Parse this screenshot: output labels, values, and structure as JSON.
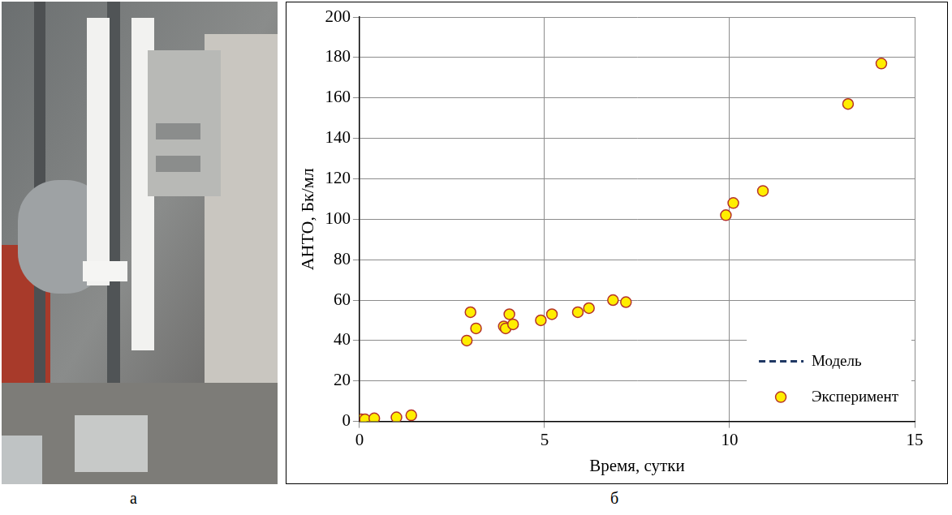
{
  "photo_panel": {
    "label": "а"
  },
  "chart_data": {
    "panel_label": "б",
    "type": "scatter",
    "x_label": "Время, сутки",
    "y_label": "АНТО, Бк/мл",
    "x": [
      0.05,
      0.15,
      0.4,
      1.0,
      1.4,
      2.9,
      3.0,
      3.15,
      3.9,
      3.95,
      4.05,
      4.15,
      4.9,
      5.2,
      5.9,
      6.2,
      6.85,
      7.2,
      9.9,
      10.1,
      10.9,
      13.2,
      14.1
    ],
    "series": [
      {
        "name": "Модель",
        "type": "line",
        "line_style": "dashed",
        "color": "#1f3864",
        "values": [
          null,
          null,
          null,
          null,
          null,
          null,
          null,
          null,
          null,
          null,
          null,
          null,
          null,
          null,
          null,
          null,
          null,
          null,
          null,
          null,
          null,
          null,
          null
        ]
      },
      {
        "name": "Эксперимент",
        "type": "scatter",
        "marker": "circle",
        "color": "#ffee00",
        "values": [
          1,
          1,
          1.5,
          2,
          3,
          40,
          54,
          46,
          47,
          46,
          53,
          48,
          50,
          53,
          54,
          56,
          60,
          59,
          102,
          108,
          114,
          157,
          177
        ]
      }
    ],
    "xlim": [
      0,
      15
    ],
    "xticks": [
      0,
      5,
      10,
      15
    ],
    "ylim": [
      0,
      200
    ],
    "yticks": [
      0,
      20,
      40,
      60,
      80,
      100,
      120,
      140,
      160,
      180,
      200
    ],
    "grid": true,
    "legend": "lower right"
  }
}
